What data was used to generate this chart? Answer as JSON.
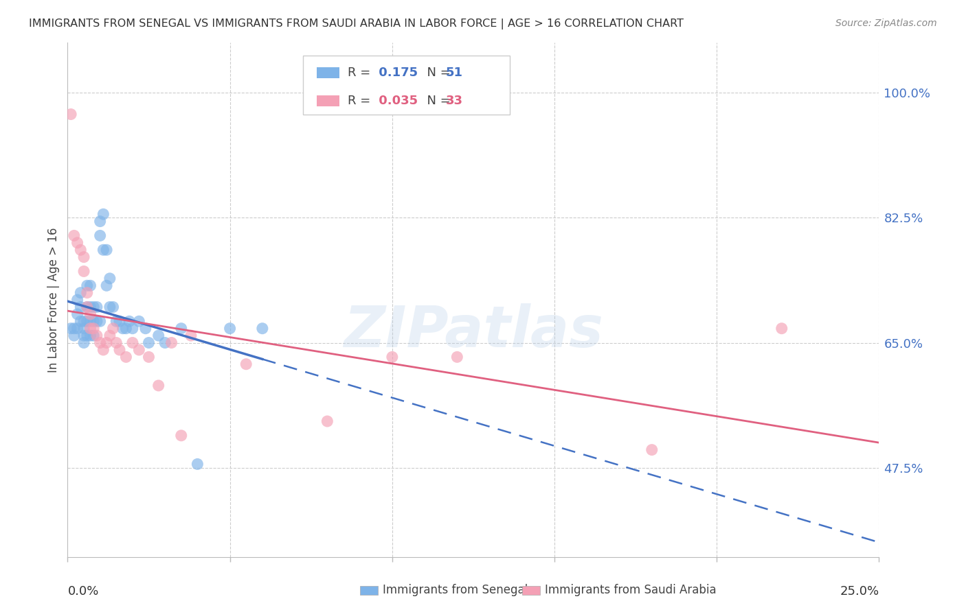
{
  "title": "IMMIGRANTS FROM SENEGAL VS IMMIGRANTS FROM SAUDI ARABIA IN LABOR FORCE | AGE > 16 CORRELATION CHART",
  "source": "Source: ZipAtlas.com",
  "ylabel": "In Labor Force | Age > 16",
  "ylabel_ticks": [
    "100.0%",
    "82.5%",
    "65.0%",
    "47.5%"
  ],
  "ylabel_tick_values": [
    1.0,
    0.825,
    0.65,
    0.475
  ],
  "xmin": 0.0,
  "xmax": 0.25,
  "ymin": 0.35,
  "ymax": 1.07,
  "R_senegal": 0.175,
  "N_senegal": 51,
  "R_saudi": 0.035,
  "N_saudi": 33,
  "color_senegal": "#7EB3E8",
  "color_saudi": "#F4A0B5",
  "line_color_senegal": "#4472C4",
  "line_color_saudi": "#E06080",
  "senegal_x": [
    0.001,
    0.002,
    0.002,
    0.003,
    0.003,
    0.003,
    0.004,
    0.004,
    0.004,
    0.005,
    0.005,
    0.005,
    0.005,
    0.006,
    0.006,
    0.006,
    0.006,
    0.007,
    0.007,
    0.007,
    0.007,
    0.008,
    0.008,
    0.008,
    0.009,
    0.009,
    0.01,
    0.01,
    0.01,
    0.011,
    0.011,
    0.012,
    0.012,
    0.013,
    0.013,
    0.014,
    0.015,
    0.016,
    0.017,
    0.018,
    0.019,
    0.02,
    0.022,
    0.024,
    0.025,
    0.028,
    0.03,
    0.035,
    0.04,
    0.05,
    0.06
  ],
  "senegal_y": [
    0.67,
    0.67,
    0.66,
    0.71,
    0.69,
    0.67,
    0.72,
    0.7,
    0.68,
    0.68,
    0.67,
    0.66,
    0.65,
    0.73,
    0.7,
    0.68,
    0.66,
    0.73,
    0.7,
    0.68,
    0.66,
    0.7,
    0.68,
    0.66,
    0.7,
    0.68,
    0.82,
    0.8,
    0.68,
    0.83,
    0.78,
    0.78,
    0.73,
    0.74,
    0.7,
    0.7,
    0.68,
    0.68,
    0.67,
    0.67,
    0.68,
    0.67,
    0.68,
    0.67,
    0.65,
    0.66,
    0.65,
    0.67,
    0.48,
    0.67,
    0.67
  ],
  "saudi_x": [
    0.001,
    0.002,
    0.003,
    0.004,
    0.005,
    0.005,
    0.006,
    0.006,
    0.007,
    0.007,
    0.008,
    0.009,
    0.01,
    0.011,
    0.012,
    0.013,
    0.014,
    0.015,
    0.016,
    0.018,
    0.02,
    0.022,
    0.025,
    0.028,
    0.032,
    0.035,
    0.038,
    0.055,
    0.08,
    0.1,
    0.12,
    0.18,
    0.22
  ],
  "saudi_y": [
    0.97,
    0.8,
    0.79,
    0.78,
    0.77,
    0.75,
    0.72,
    0.7,
    0.69,
    0.67,
    0.67,
    0.66,
    0.65,
    0.64,
    0.65,
    0.66,
    0.67,
    0.65,
    0.64,
    0.63,
    0.65,
    0.64,
    0.63,
    0.59,
    0.65,
    0.52,
    0.66,
    0.62,
    0.54,
    0.63,
    0.63,
    0.5,
    0.67
  ],
  "watermark": "ZIPatlas",
  "bottom_legend": [
    "Immigrants from Senegal",
    "Immigrants from Saudi Arabia"
  ]
}
